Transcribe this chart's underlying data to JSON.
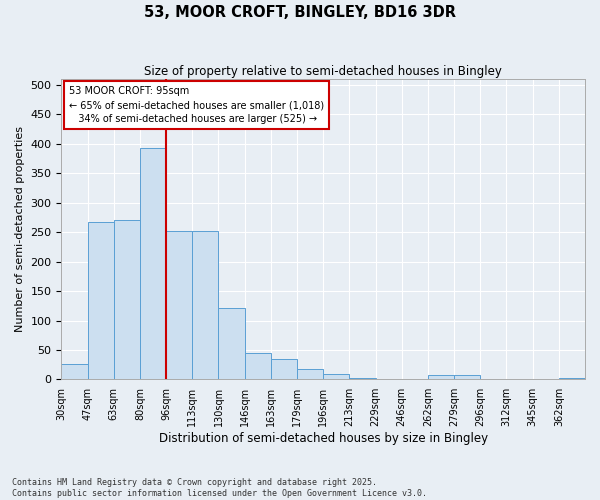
{
  "title": "53, MOOR CROFT, BINGLEY, BD16 3DR",
  "subtitle": "Size of property relative to semi-detached houses in Bingley",
  "xlabel": "Distribution of semi-detached houses by size in Bingley",
  "ylabel": "Number of semi-detached properties",
  "property_label": "53 MOOR CROFT: 95sqm",
  "pct_smaller": 65,
  "pct_larger": 34,
  "n_smaller": 1018,
  "n_larger": 525,
  "bar_color": "#ccdff0",
  "bar_edge_color": "#5a9fd4",
  "vline_color": "#cc0000",
  "annotation_box_color": "#cc0000",
  "background_color": "#e8eef4",
  "grid_color": "#ffffff",
  "categories": [
    "30sqm",
    "47sqm",
    "63sqm",
    "80sqm",
    "96sqm",
    "113sqm",
    "130sqm",
    "146sqm",
    "163sqm",
    "179sqm",
    "196sqm",
    "213sqm",
    "229sqm",
    "246sqm",
    "262sqm",
    "279sqm",
    "296sqm",
    "312sqm",
    "345sqm",
    "362sqm"
  ],
  "values": [
    27,
    267,
    270,
    393,
    252,
    252,
    122,
    45,
    35,
    17,
    10,
    3,
    0,
    0,
    7,
    8,
    0,
    0,
    0,
    3
  ],
  "vline_position": 4,
  "ylim": [
    0,
    510
  ],
  "yticks": [
    0,
    50,
    100,
    150,
    200,
    250,
    300,
    350,
    400,
    450,
    500
  ],
  "footnote": "Contains HM Land Registry data © Crown copyright and database right 2025.\nContains public sector information licensed under the Open Government Licence v3.0."
}
